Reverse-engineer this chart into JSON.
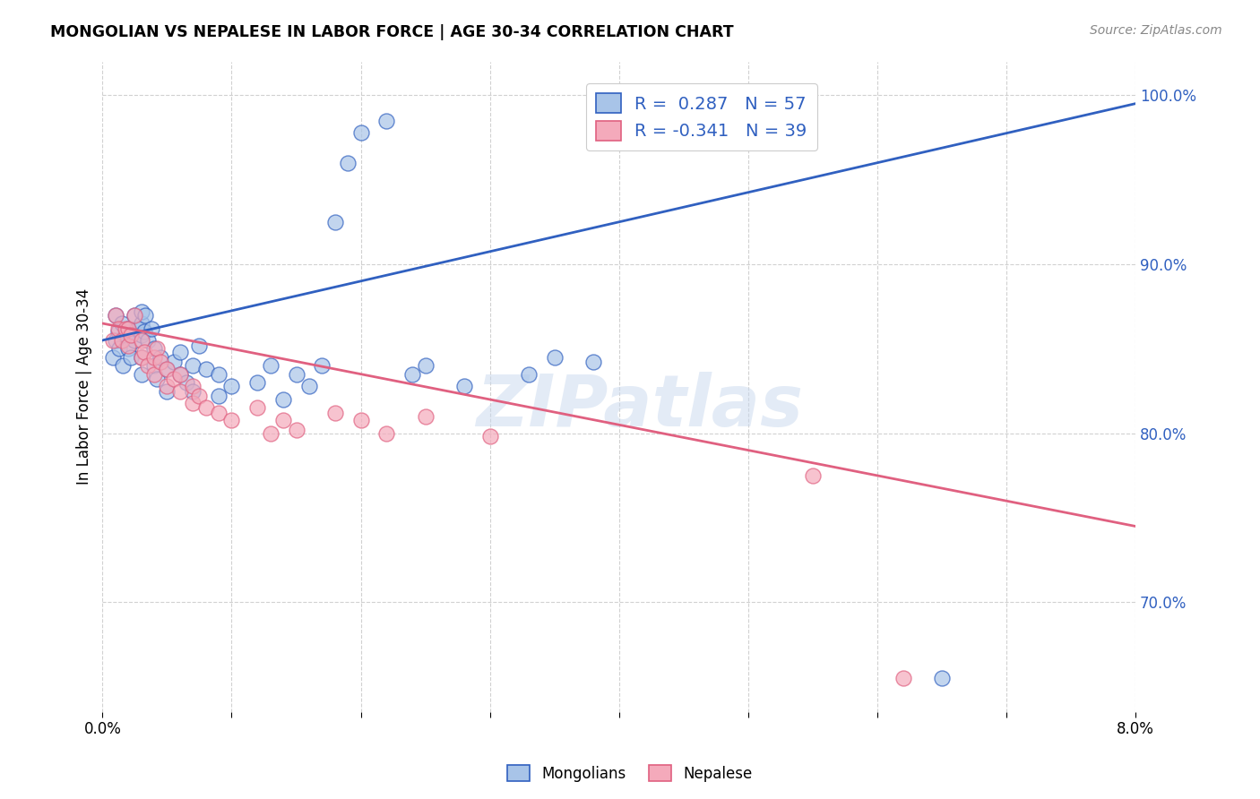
{
  "title": "MONGOLIAN VS NEPALESE IN LABOR FORCE | AGE 30-34 CORRELATION CHART",
  "source": "Source: ZipAtlas.com",
  "ylabel": "In Labor Force | Age 30-34",
  "watermark": "ZIPatlas",
  "legend_mongolians": "Mongolians",
  "legend_nepalese": "Nepalese",
  "r_mongolian": 0.287,
  "n_mongolian": 57,
  "r_nepalese": -0.341,
  "n_nepalese": 39,
  "xlim": [
    0.0,
    0.08
  ],
  "ylim": [
    0.635,
    1.02
  ],
  "yticks": [
    0.7,
    0.8,
    0.9,
    1.0
  ],
  "ytick_labels": [
    "70.0%",
    "80.0%",
    "90.0%",
    "100.0%"
  ],
  "blue_color": "#A8C4E8",
  "pink_color": "#F4AABB",
  "blue_line_color": "#3060C0",
  "pink_line_color": "#E06080",
  "blue_line_x0": 0.0,
  "blue_line_y0": 0.855,
  "blue_line_x1": 0.08,
  "blue_line_y1": 0.995,
  "pink_line_x0": 0.0,
  "pink_line_y0": 0.865,
  "pink_line_x1": 0.08,
  "pink_line_y1": 0.745,
  "mongolian_x": [
    0.0008,
    0.001,
    0.001,
    0.0012,
    0.0013,
    0.0015,
    0.0016,
    0.0018,
    0.002,
    0.002,
    0.0022,
    0.0025,
    0.0025,
    0.0027,
    0.003,
    0.003,
    0.003,
    0.003,
    0.003,
    0.0032,
    0.0033,
    0.0035,
    0.0038,
    0.004,
    0.004,
    0.0042,
    0.0045,
    0.005,
    0.005,
    0.0055,
    0.006,
    0.006,
    0.0065,
    0.007,
    0.007,
    0.0075,
    0.008,
    0.009,
    0.009,
    0.01,
    0.012,
    0.013,
    0.014,
    0.015,
    0.016,
    0.017,
    0.018,
    0.019,
    0.02,
    0.022,
    0.024,
    0.025,
    0.028,
    0.033,
    0.035,
    0.038,
    0.065
  ],
  "mongolian_y": [
    0.845,
    0.855,
    0.87,
    0.86,
    0.85,
    0.865,
    0.84,
    0.858,
    0.85,
    0.862,
    0.845,
    0.87,
    0.855,
    0.862,
    0.858,
    0.865,
    0.872,
    0.845,
    0.835,
    0.86,
    0.87,
    0.855,
    0.862,
    0.85,
    0.84,
    0.832,
    0.845,
    0.838,
    0.825,
    0.842,
    0.835,
    0.848,
    0.83,
    0.84,
    0.825,
    0.852,
    0.838,
    0.822,
    0.835,
    0.828,
    0.83,
    0.84,
    0.82,
    0.835,
    0.828,
    0.84,
    0.925,
    0.96,
    0.978,
    0.985,
    0.835,
    0.84,
    0.828,
    0.835,
    0.845,
    0.842,
    0.655
  ],
  "nepalese_x": [
    0.0008,
    0.001,
    0.0012,
    0.0015,
    0.0018,
    0.002,
    0.002,
    0.0022,
    0.0025,
    0.003,
    0.003,
    0.0032,
    0.0035,
    0.004,
    0.004,
    0.0042,
    0.0045,
    0.005,
    0.005,
    0.0055,
    0.006,
    0.006,
    0.007,
    0.007,
    0.0075,
    0.008,
    0.009,
    0.01,
    0.012,
    0.013,
    0.014,
    0.015,
    0.018,
    0.02,
    0.022,
    0.025,
    0.03,
    0.055,
    0.062
  ],
  "nepalese_y": [
    0.855,
    0.87,
    0.862,
    0.855,
    0.862,
    0.852,
    0.862,
    0.858,
    0.87,
    0.845,
    0.855,
    0.848,
    0.84,
    0.845,
    0.835,
    0.85,
    0.842,
    0.838,
    0.828,
    0.832,
    0.825,
    0.835,
    0.818,
    0.828,
    0.822,
    0.815,
    0.812,
    0.808,
    0.815,
    0.8,
    0.808,
    0.802,
    0.812,
    0.808,
    0.8,
    0.81,
    0.798,
    0.775,
    0.655
  ]
}
